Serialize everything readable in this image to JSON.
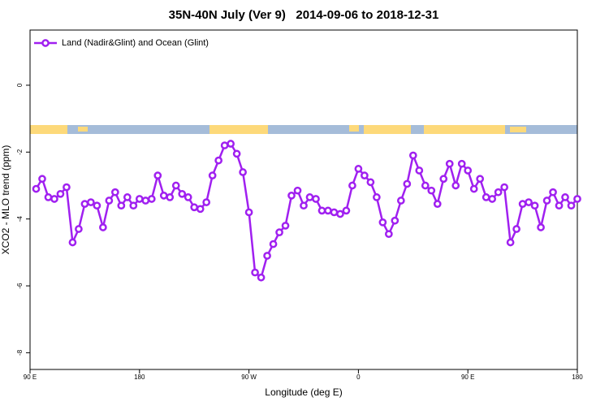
{
  "chart_data": {
    "type": "line",
    "title": "35N-40N July (Ver 9)   2014-09-06 to 2018-12-31",
    "x_label": "Longitude (deg E)",
    "y_label": "XCO2 - MLO trend (ppm)",
    "legend": "top-left",
    "xlim": [
      90,
      540
    ],
    "xticks": [
      {
        "value": 90,
        "label": "90 E"
      },
      {
        "value": 180,
        "label": "180"
      },
      {
        "value": 270,
        "label": "90 W"
      },
      {
        "value": 360,
        "label": "0"
      },
      {
        "value": 450,
        "label": "90 E"
      },
      {
        "value": 540,
        "label": "180"
      }
    ],
    "ylim": [
      -8.5,
      1.65
    ],
    "yticks": [
      0,
      -2,
      -4,
      -6,
      -8
    ],
    "x": [
      95,
      100,
      105,
      110,
      115,
      120,
      125,
      130,
      135,
      140,
      145,
      150,
      155,
      160,
      165,
      170,
      175,
      180,
      185,
      190,
      195,
      200,
      205,
      210,
      215,
      220,
      225,
      230,
      235,
      240,
      245,
      250,
      255,
      260,
      265,
      270,
      275,
      280,
      285,
      290,
      295,
      300,
      305,
      310,
      315,
      320,
      325,
      330,
      335,
      340,
      345,
      350,
      355,
      360,
      365,
      370,
      375,
      380,
      385,
      390,
      395,
      400,
      405,
      410,
      415,
      420,
      425,
      430,
      435,
      440,
      445,
      450,
      455,
      460,
      465,
      470,
      475,
      480,
      485,
      490,
      495,
      500,
      505,
      510,
      515,
      520,
      525,
      530,
      535,
      540
    ],
    "series": [
      {
        "name": "Land (Nadir&Glint) and Ocean (Glint)",
        "color": "#a020f0",
        "values": [
          -3.1,
          -2.8,
          -3.35,
          -3.4,
          -3.25,
          -3.05,
          -4.7,
          -4.3,
          -3.55,
          -3.5,
          -3.6,
          -4.25,
          -3.45,
          -3.2,
          -3.6,
          -3.35,
          -3.6,
          -3.4,
          -3.45,
          -3.4,
          -2.7,
          -3.3,
          -3.35,
          -3.0,
          -3.25,
          -3.35,
          -3.65,
          -3.7,
          -3.5,
          -2.7,
          -2.25,
          -1.8,
          -1.75,
          -2.05,
          -2.6,
          -3.8,
          -5.6,
          -5.75,
          -5.1,
          -4.75,
          -4.4,
          -4.2,
          -3.3,
          -3.15,
          -3.6,
          -3.35,
          -3.4,
          -3.75,
          -3.75,
          -3.8,
          -3.85,
          -3.75,
          -3.0,
          -2.5,
          -2.7,
          -2.9,
          -3.35,
          -4.1,
          -4.45,
          -4.05,
          -3.45,
          -2.95,
          -2.1,
          -2.55,
          -3.0,
          -3.15,
          -3.55,
          -2.8,
          -2.35,
          -3.0,
          -2.35,
          -2.55,
          -3.1,
          -2.8,
          -3.35,
          -3.4,
          -3.2,
          -3.05,
          -4.7,
          -4.3,
          -3.55,
          -3.5,
          -3.6,
          -4.25,
          -3.45,
          -3.2,
          -3.6,
          -3.35,
          -3.6,
          -3.4
        ]
      }
    ]
  }
}
